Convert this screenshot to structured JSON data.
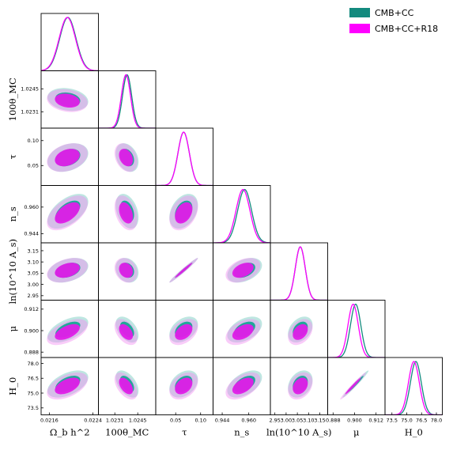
{
  "chart_data": {
    "type": "corner",
    "parameters": [
      {
        "label": "Ω_b h^2",
        "range": [
          0.02145,
          0.0225
        ],
        "ticks": [
          "0.0216",
          "0.0224"
        ],
        "tick_values": [
          0.0216,
          0.0224
        ]
      },
      {
        "label": "100θ_MC",
        "range": [
          1.0221,
          1.0256
        ],
        "ticks": [
          "1.0231",
          "1.0245"
        ],
        "tick_values": [
          1.0231,
          1.0245
        ]
      },
      {
        "label": "τ",
        "range": [
          0.01,
          0.125
        ],
        "ticks": [
          "0.05",
          "0.10"
        ],
        "tick_values": [
          0.05,
          0.1
        ]
      },
      {
        "label": "n_s",
        "range": [
          0.9385,
          0.973
        ],
        "ticks": [
          "0.944",
          "0.960"
        ],
        "tick_values": [
          0.944,
          0.96
        ]
      },
      {
        "label": "ln(10^10 A_s)",
        "range": [
          2.93,
          3.185
        ],
        "ticks": [
          "2.95",
          "3.00",
          "3.05",
          "3.10",
          "3.15"
        ],
        "tick_values": [
          2.95,
          3.0,
          3.05,
          3.1,
          3.15
        ]
      },
      {
        "label": "μ",
        "range": [
          0.885,
          0.917
        ],
        "ticks": [
          "0.888",
          "0.900",
          "0.912"
        ],
        "tick_values": [
          0.888,
          0.9,
          0.912
        ]
      },
      {
        "label": "H_0",
        "range": [
          72.8,
          78.6
        ],
        "ticks": [
          "73.5",
          "75.0",
          "76.5",
          "78.0"
        ],
        "tick_values": [
          73.5,
          75.0,
          76.5,
          78.0
        ]
      }
    ],
    "series": [
      {
        "name": "CMB+CC",
        "color": "#138a7e",
        "means": [
          0.02194,
          1.02385,
          0.066,
          0.9575,
          3.063,
          0.9006,
          75.92
        ],
        "sigmas": [
          0.00015,
          0.00028,
          0.0115,
          0.0042,
          0.022,
          0.0029,
          0.55
        ]
      },
      {
        "name": "CMB+CC+R18",
        "color": "#ff00ff",
        "means": [
          0.02193,
          1.02378,
          0.066,
          0.9565,
          3.063,
          0.8992,
          75.72
        ],
        "sigmas": [
          0.00015,
          0.00028,
          0.0115,
          0.0042,
          0.022,
          0.0029,
          0.55
        ]
      }
    ],
    "correlations": [
      [
        1.0,
        -0.2,
        0.3,
        0.55,
        0.35,
        0.55,
        0.5
      ],
      [
        -0.2,
        1.0,
        -0.3,
        -0.35,
        -0.2,
        -0.45,
        -0.5
      ],
      [
        0.3,
        -0.3,
        1.0,
        0.35,
        0.98,
        0.4,
        0.35
      ],
      [
        0.55,
        -0.35,
        0.35,
        1.0,
        0.4,
        0.45,
        0.5
      ],
      [
        0.35,
        -0.2,
        0.98,
        0.4,
        1.0,
        0.35,
        0.3
      ],
      [
        0.55,
        -0.45,
        0.4,
        0.45,
        0.35,
        1.0,
        0.98
      ],
      [
        0.5,
        -0.5,
        0.35,
        0.5,
        0.3,
        0.98,
        1.0
      ]
    ],
    "legend": {
      "placement": "top-right",
      "entries": [
        "CMB+CC",
        "CMB+CC+R18"
      ]
    }
  }
}
